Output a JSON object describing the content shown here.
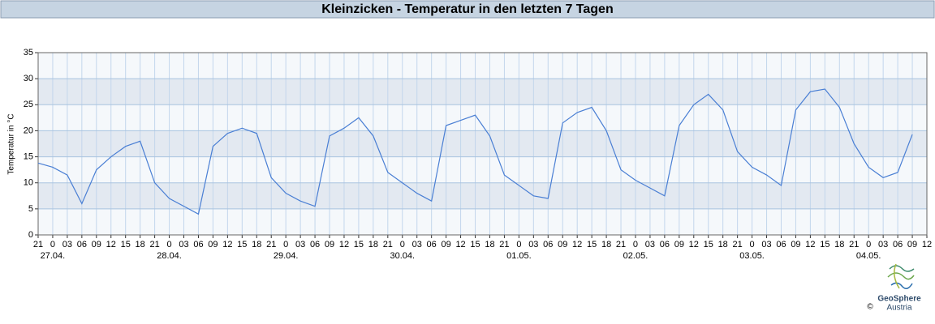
{
  "chart_data": {
    "type": "line",
    "title": "Kleinzicken - Temperatur in den letzten 7 Tagen",
    "ylabel": "Temperatur in °C",
    "x": [
      0,
      3,
      6,
      9,
      12,
      15,
      18,
      21,
      24,
      27,
      30,
      33,
      36,
      39,
      42,
      45,
      48,
      51,
      54,
      57,
      60,
      63,
      66,
      69,
      72,
      75,
      78,
      81,
      84,
      87,
      90,
      93,
      96,
      99,
      102,
      105,
      108,
      111,
      114,
      117,
      120,
      123,
      126,
      129,
      132,
      135,
      138,
      141,
      144,
      147,
      150,
      153,
      156,
      159,
      162,
      165,
      168,
      171,
      174,
      177,
      180
    ],
    "series": [
      {
        "color": "#4a7fd4",
        "values": [
          13.8,
          13,
          11.5,
          6,
          12.5,
          15,
          17,
          18,
          10,
          7,
          5.5,
          4,
          17,
          19.5,
          20.5,
          19.5,
          11,
          8,
          6.5,
          5.5,
          19,
          20.5,
          22.5,
          19,
          12,
          10,
          8,
          6.5,
          21,
          22,
          23,
          19,
          11.5,
          9.5,
          7.5,
          7,
          21.5,
          23.5,
          24.5,
          20,
          12.5,
          10.5,
          9,
          7.5,
          21,
          25,
          27,
          24,
          16,
          13,
          11.5,
          9.5,
          24,
          27.5,
          28,
          24.5,
          17.5,
          13,
          11,
          12,
          19.3
        ]
      }
    ],
    "xlim": [
      0,
      183
    ],
    "ylim": [
      0,
      35
    ],
    "yticks": [
      0,
      5,
      10,
      15,
      20,
      25,
      30,
      35
    ],
    "xticks": [
      {
        "value": 0,
        "label": "21"
      },
      {
        "value": 3,
        "label": "0"
      },
      {
        "value": 6,
        "label": "03"
      },
      {
        "value": 9,
        "label": "06"
      },
      {
        "value": 12,
        "label": "09"
      },
      {
        "value": 15,
        "label": "12"
      },
      {
        "value": 18,
        "label": "15"
      },
      {
        "value": 21,
        "label": "18"
      },
      {
        "value": 24,
        "label": "21"
      },
      {
        "value": 27,
        "label": "0"
      },
      {
        "value": 30,
        "label": "03"
      },
      {
        "value": 33,
        "label": "06"
      },
      {
        "value": 36,
        "label": "09"
      },
      {
        "value": 39,
        "label": "12"
      },
      {
        "value": 42,
        "label": "15"
      },
      {
        "value": 45,
        "label": "18"
      },
      {
        "value": 48,
        "label": "21"
      },
      {
        "value": 51,
        "label": "0"
      },
      {
        "value": 54,
        "label": "03"
      },
      {
        "value": 57,
        "label": "06"
      },
      {
        "value": 60,
        "label": "09"
      },
      {
        "value": 63,
        "label": "12"
      },
      {
        "value": 66,
        "label": "15"
      },
      {
        "value": 69,
        "label": "18"
      },
      {
        "value": 72,
        "label": "21"
      },
      {
        "value": 75,
        "label": "0"
      },
      {
        "value": 78,
        "label": "03"
      },
      {
        "value": 81,
        "label": "06"
      },
      {
        "value": 84,
        "label": "09"
      },
      {
        "value": 87,
        "label": "12"
      },
      {
        "value": 90,
        "label": "15"
      },
      {
        "value": 93,
        "label": "18"
      },
      {
        "value": 96,
        "label": "21"
      },
      {
        "value": 99,
        "label": "0"
      },
      {
        "value": 102,
        "label": "03"
      },
      {
        "value": 105,
        "label": "06"
      },
      {
        "value": 108,
        "label": "09"
      },
      {
        "value": 111,
        "label": "12"
      },
      {
        "value": 114,
        "label": "15"
      },
      {
        "value": 117,
        "label": "18"
      },
      {
        "value": 120,
        "label": "21"
      },
      {
        "value": 123,
        "label": "0"
      },
      {
        "value": 126,
        "label": "03"
      },
      {
        "value": 129,
        "label": "06"
      },
      {
        "value": 132,
        "label": "09"
      },
      {
        "value": 135,
        "label": "12"
      },
      {
        "value": 138,
        "label": "15"
      },
      {
        "value": 141,
        "label": "18"
      },
      {
        "value": 144,
        "label": "21"
      },
      {
        "value": 147,
        "label": "0"
      },
      {
        "value": 150,
        "label": "03"
      },
      {
        "value": 153,
        "label": "06"
      },
      {
        "value": 156,
        "label": "09"
      },
      {
        "value": 159,
        "label": "12"
      },
      {
        "value": 162,
        "label": "15"
      },
      {
        "value": 165,
        "label": "18"
      },
      {
        "value": 168,
        "label": "21"
      },
      {
        "value": 171,
        "label": "0"
      },
      {
        "value": 174,
        "label": "03"
      },
      {
        "value": 177,
        "label": "06"
      },
      {
        "value": 180,
        "label": "09"
      },
      {
        "value": 183,
        "label": "12"
      }
    ],
    "date_labels": [
      {
        "value": 3,
        "label": "27.04."
      },
      {
        "value": 27,
        "label": "28.04."
      },
      {
        "value": 51,
        "label": "29.04."
      },
      {
        "value": 75,
        "label": "30.04."
      },
      {
        "value": 99,
        "label": "01.05."
      },
      {
        "value": 123,
        "label": "02.05."
      },
      {
        "value": 147,
        "label": "03.05."
      },
      {
        "value": 171,
        "label": "04.05."
      }
    ],
    "grid": true
  },
  "logo": {
    "name": "GeoSphere",
    "sub": "Austria",
    "copyright": "©"
  }
}
